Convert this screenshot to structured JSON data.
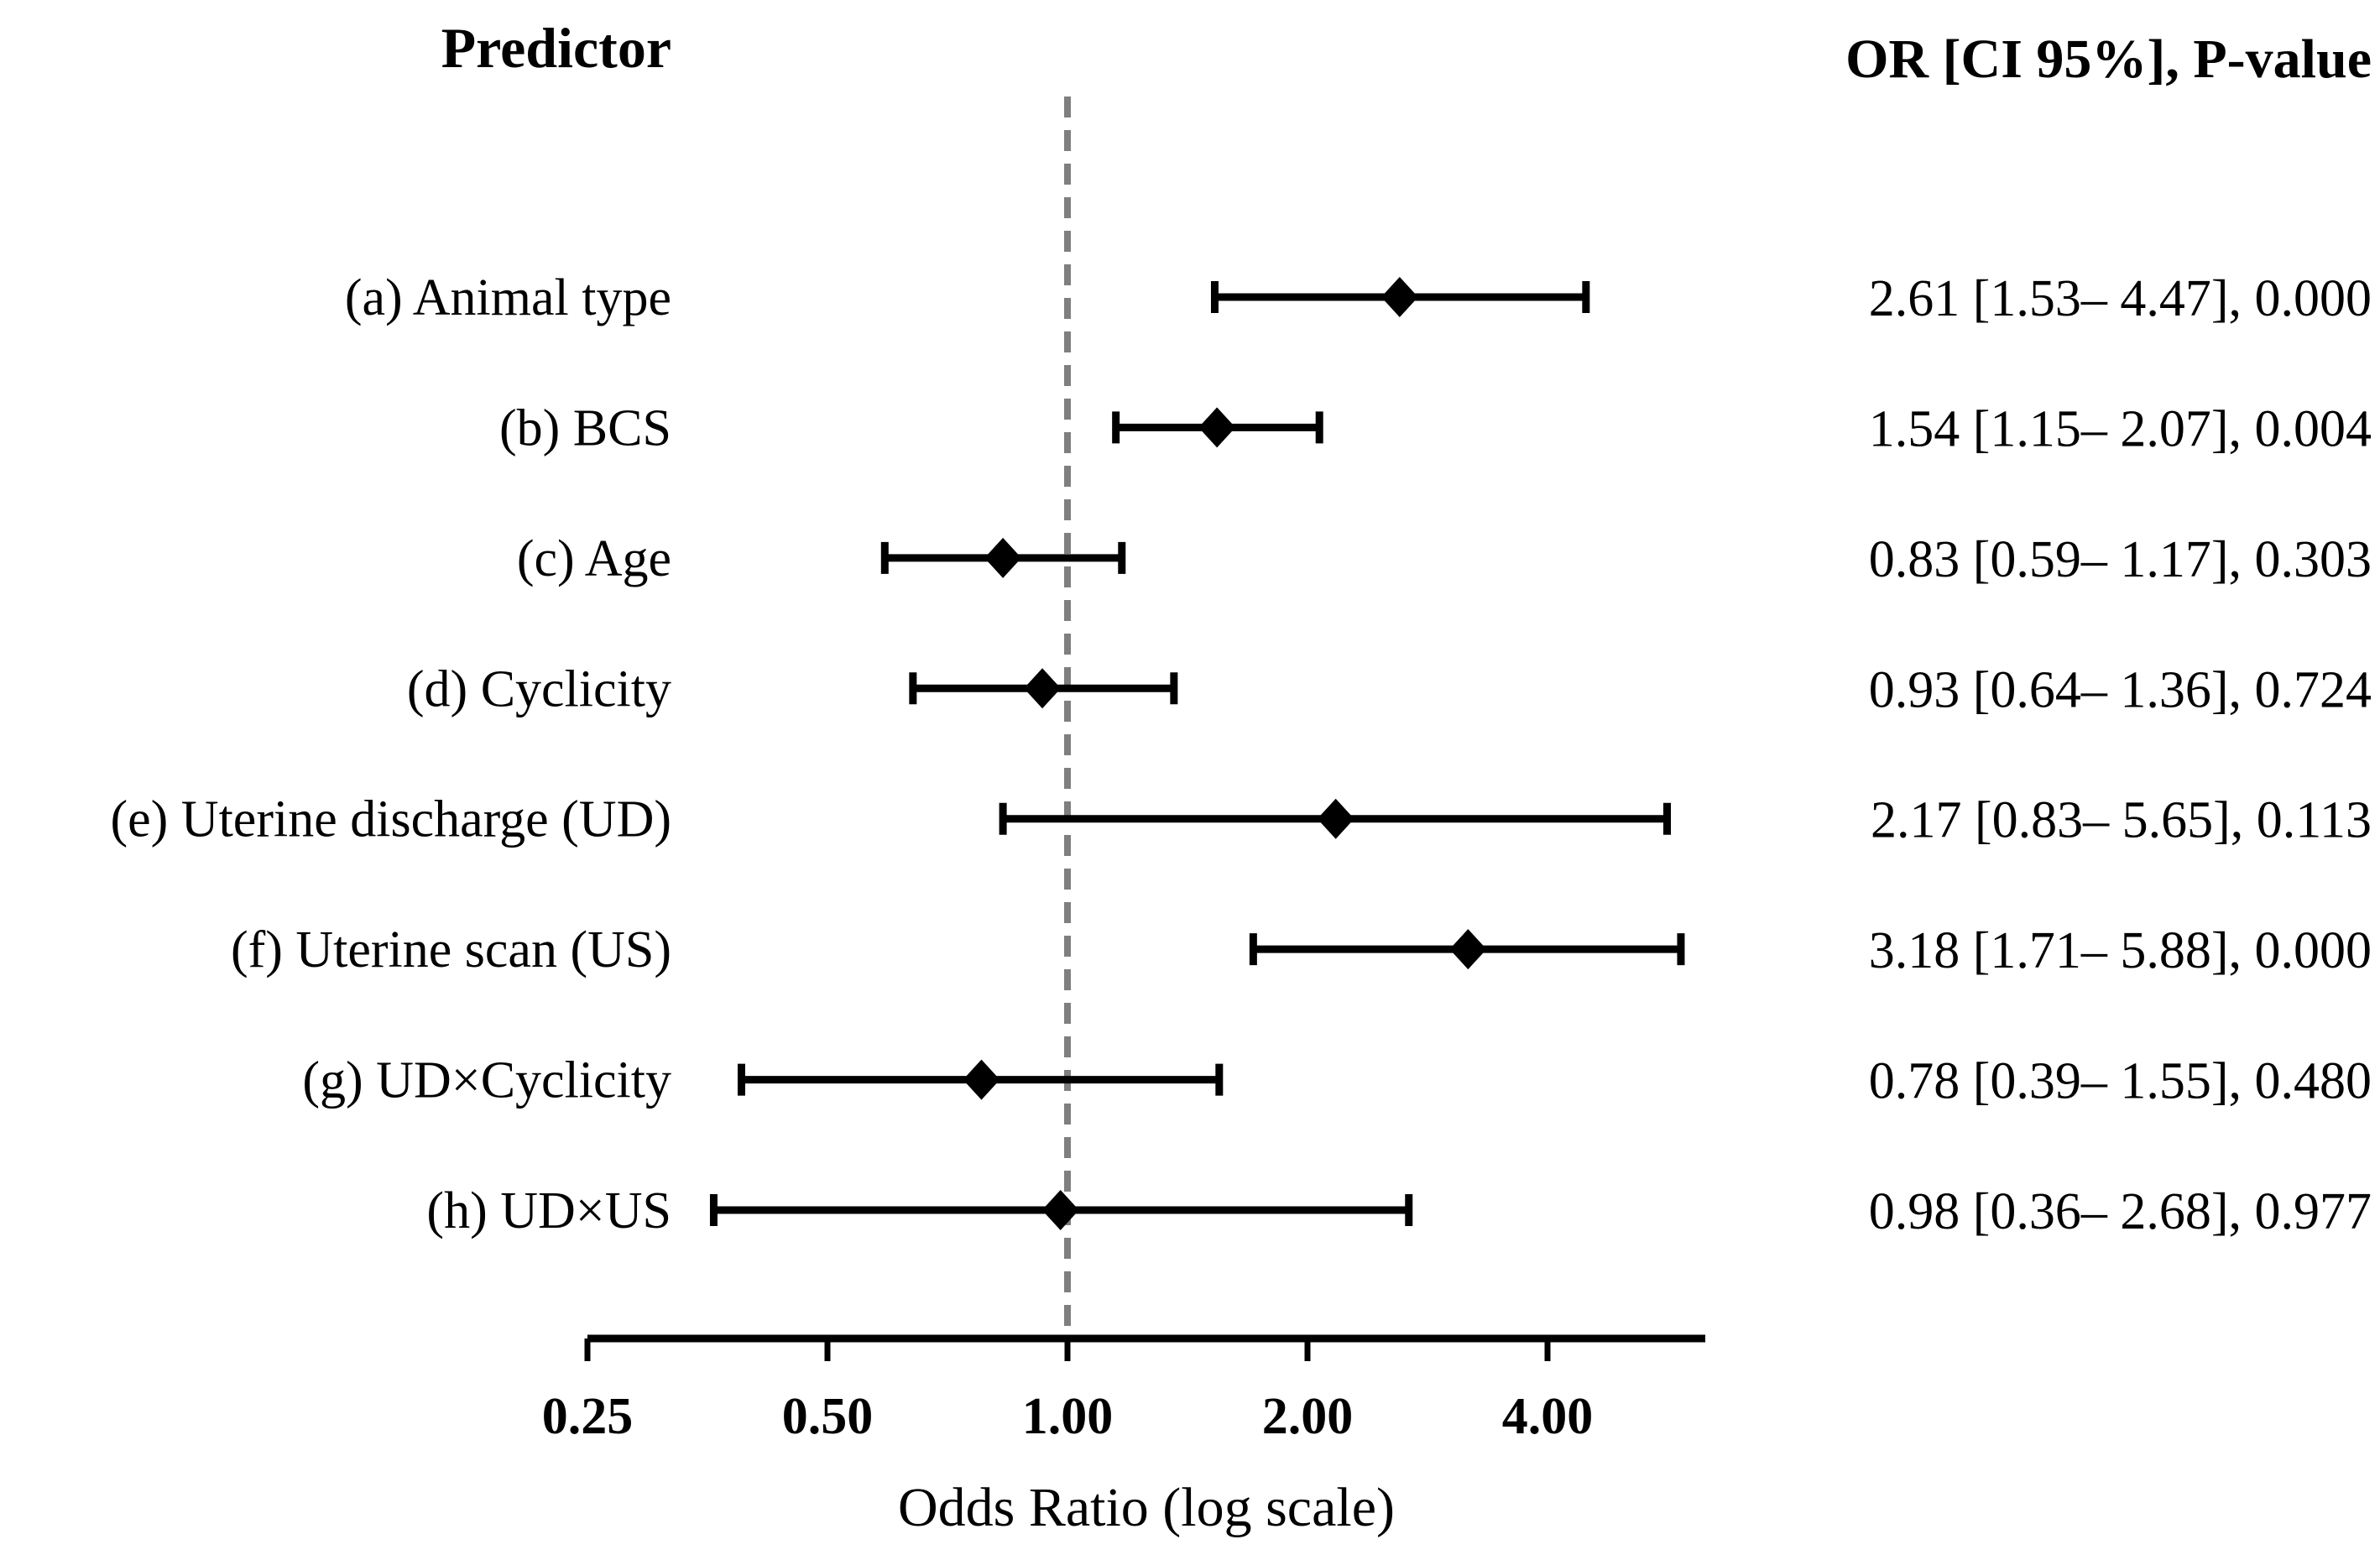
{
  "chart_data": {
    "type": "forest",
    "title_left": "Predictor",
    "title_right": "OR [CI 95%], P-value",
    "xlabel": "Odds Ratio (log scale)",
    "x_scale": "log2",
    "reference_line": 1.0,
    "axis_range": [
      0.25,
      6.3
    ],
    "grid": "off",
    "x_ticks": [
      {
        "value": 0.25,
        "label": "0.25"
      },
      {
        "value": 0.5,
        "label": "0.50"
      },
      {
        "value": 1.0,
        "label": "1.00"
      },
      {
        "value": 2.0,
        "label": "2.00"
      },
      {
        "value": 4.0,
        "label": "4.00"
      }
    ],
    "colors": {
      "marker": "#000000",
      "reference_line": "#7f7f7f"
    },
    "rows": [
      {
        "label": "(a) Animal type",
        "or": 2.61,
        "ci_low": 1.53,
        "ci_high": 4.47,
        "p_value": "0.000",
        "annotation": "2.61 [1.53– 4.47], 0.000"
      },
      {
        "label": "(b) BCS",
        "or": 1.54,
        "ci_low": 1.15,
        "ci_high": 2.07,
        "p_value": "0.004",
        "annotation": "1.54 [1.15– 2.07], 0.004"
      },
      {
        "label": "(c) Age",
        "or": 0.83,
        "ci_low": 0.59,
        "ci_high": 1.17,
        "p_value": "0.303",
        "annotation": "0.83 [0.59– 1.17], 0.303"
      },
      {
        "label": "(d) Cyclicity",
        "or": 0.93,
        "ci_low": 0.64,
        "ci_high": 1.36,
        "p_value": "0.724",
        "annotation": "0.93 [0.64– 1.36], 0.724"
      },
      {
        "label": "(e) Uterine discharge (UD)",
        "or": 2.17,
        "ci_low": 0.83,
        "ci_high": 5.65,
        "p_value": "0.113",
        "annotation": "2.17 [0.83– 5.65], 0.113"
      },
      {
        "label": "(f) Uterine scan (US)",
        "or": 3.18,
        "ci_low": 1.71,
        "ci_high": 5.88,
        "p_value": "0.000",
        "annotation": "3.18 [1.71– 5.88], 0.000"
      },
      {
        "label": "(g) UD×Cyclicity",
        "or": 0.78,
        "ci_low": 0.39,
        "ci_high": 1.55,
        "p_value": "0.480",
        "annotation": "0.78 [0.39– 1.55], 0.480"
      },
      {
        "label": "(h) UD×US",
        "or": 0.98,
        "ci_low": 0.36,
        "ci_high": 2.68,
        "p_value": "0.977",
        "annotation": "0.98 [0.36– 2.68], 0.977"
      }
    ]
  }
}
